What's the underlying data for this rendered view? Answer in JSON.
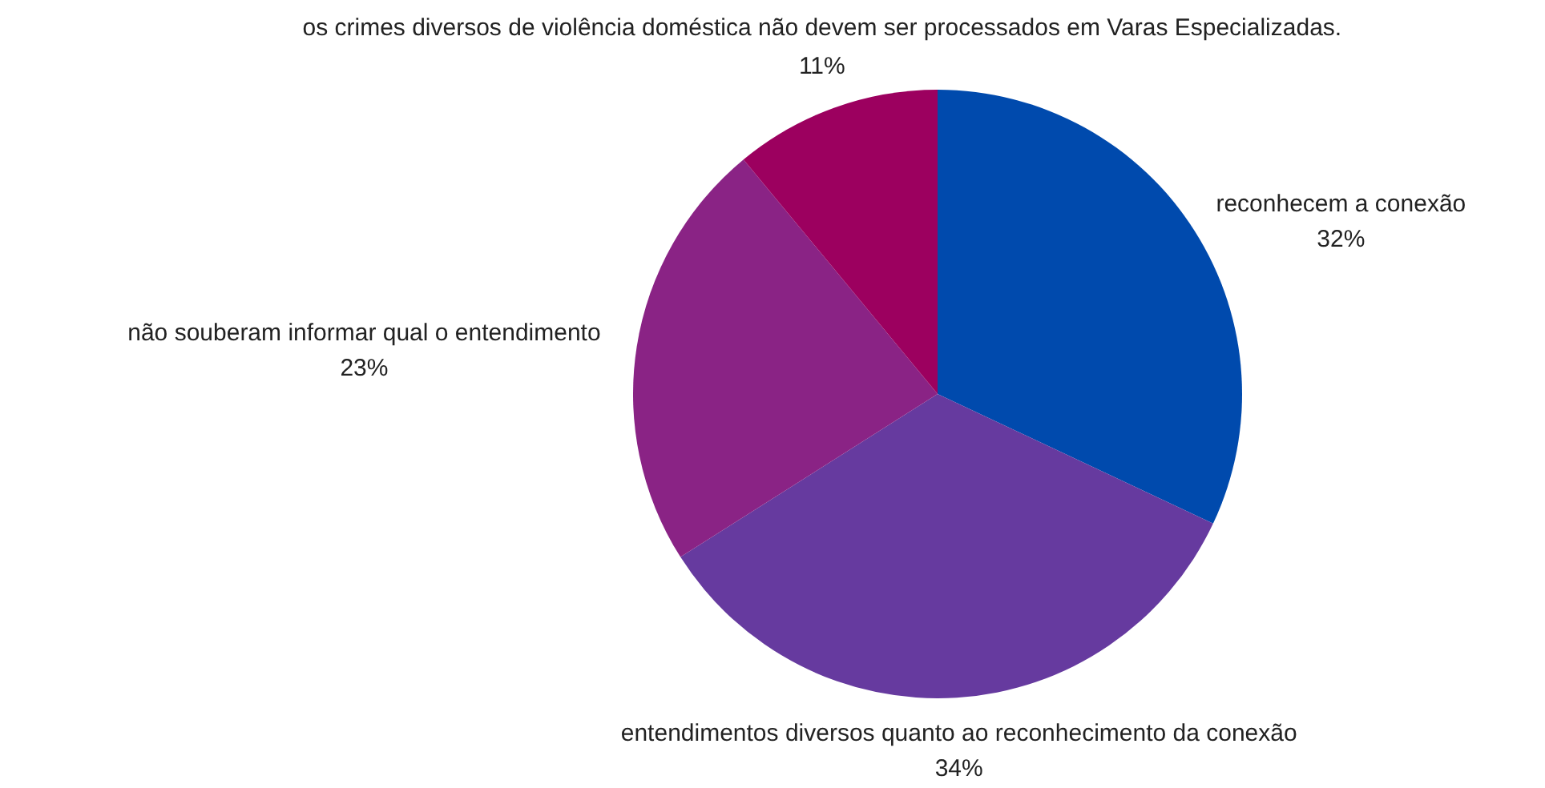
{
  "chart_data": {
    "type": "pie",
    "categories": [
      "reconhecem a conexão",
      "entendimentos diversos quanto ao reconhecimento da conexão",
      "não souberam informar qual o entendimento",
      "os crimes diversos de violência doméstica não devem ser processados em Varas Especializadas."
    ],
    "values": [
      32,
      34,
      23,
      11
    ],
    "value_labels": [
      "32%",
      "34%",
      "23%",
      "11%"
    ],
    "colors": [
      "#004aad",
      "#663a9f",
      "#8a2385",
      "#9c005f"
    ]
  }
}
